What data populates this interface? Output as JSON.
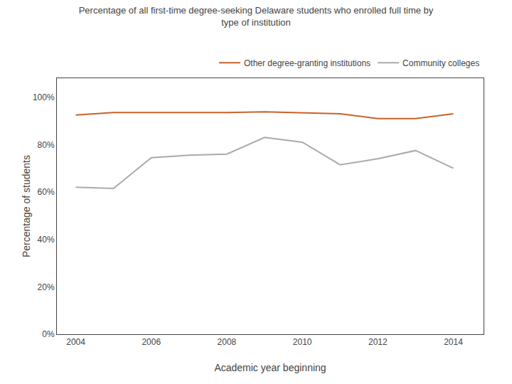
{
  "chart_data": {
    "type": "line",
    "title": "Percentage of all first-time degree-seeking Delaware students who enrolled full time by\ntype of institution",
    "xlabel": "Academic year beginning",
    "ylabel": "Percentage of students",
    "x": [
      2004,
      2005,
      2006,
      2007,
      2008,
      2009,
      2010,
      2011,
      2012,
      2013,
      2014
    ],
    "series": [
      {
        "name": "Other degree-granting institutions",
        "color": "#C8622A",
        "values": [
          0.925,
          0.935,
          0.935,
          0.935,
          0.935,
          0.938,
          0.935,
          0.93,
          0.91,
          0.91,
          0.93
        ]
      },
      {
        "name": "Community colleges",
        "color": "#AAAAAA",
        "values": [
          0.62,
          0.615,
          0.745,
          0.755,
          0.76,
          0.83,
          0.81,
          0.715,
          0.74,
          0.775,
          0.7
        ]
      }
    ],
    "xlim": [
      2003.5,
      2014.8
    ],
    "xticks": [
      2004,
      2006,
      2008,
      2010,
      2012,
      2014
    ],
    "ylim": [
      0,
      1.08
    ],
    "yticks": [
      {
        "value": 0.0,
        "label": "0%"
      },
      {
        "value": 0.2,
        "label": "20%"
      },
      {
        "value": 0.4,
        "label": "40%"
      },
      {
        "value": 0.6,
        "label": "60%"
      },
      {
        "value": 0.8,
        "label": "80%"
      },
      {
        "value": 1.0,
        "label": "100%"
      }
    ],
    "grid": false,
    "legend": "upper right"
  }
}
